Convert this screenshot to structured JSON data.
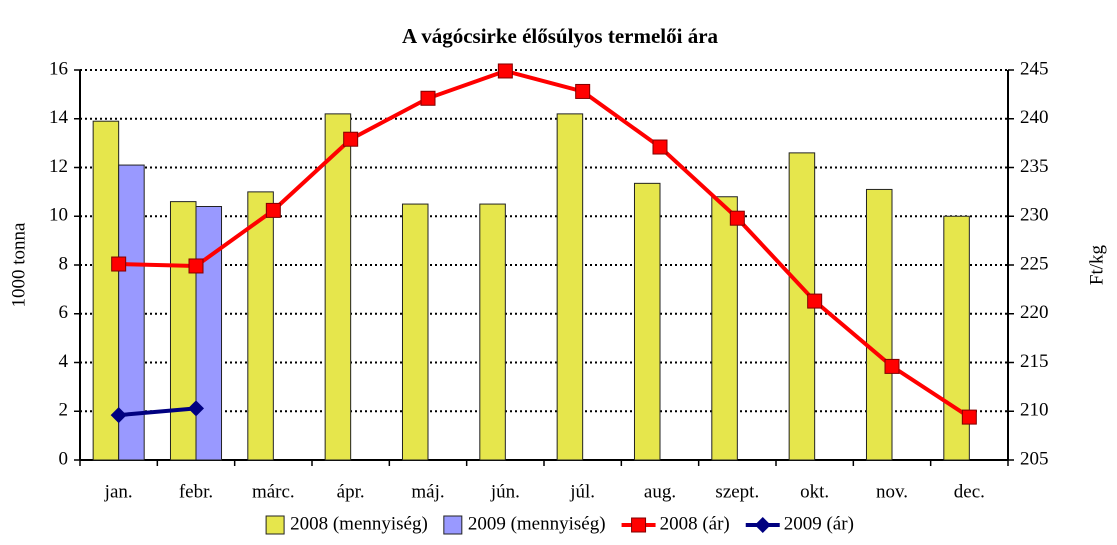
{
  "chart_data": {
    "type": "bar",
    "title": "A vágócsirke élősúlyos termelői ára",
    "ylabel": "1000 tonna",
    "y2label": "Ft/kg",
    "categories": [
      "jan.",
      "febr.",
      "márc.",
      "ápr.",
      "máj.",
      "jún.",
      "júl.",
      "aug.",
      "szept.",
      "okt.",
      "nov.",
      "dec."
    ],
    "series": [
      {
        "name": "2008 (mennyiség)",
        "type": "bar",
        "color": "#e6e64c",
        "values": [
          13.9,
          10.6,
          11.0,
          14.2,
          10.5,
          10.5,
          14.2,
          11.35,
          10.8,
          12.6,
          11.1,
          10.0
        ]
      },
      {
        "name": "2009 (mennyiség)",
        "type": "bar",
        "color": "#9999ff",
        "values": [
          12.1,
          10.4,
          null,
          null,
          null,
          null,
          null,
          null,
          null,
          null,
          null,
          null
        ]
      },
      {
        "name": "2008 (ár)",
        "type": "line",
        "axis": "y2",
        "color": "#ff0000",
        "marker": "square",
        "values": [
          225.1,
          224.9,
          230.6,
          237.9,
          242.1,
          244.9,
          242.8,
          237.1,
          229.8,
          221.3,
          214.6,
          209.4
        ]
      },
      {
        "name": "2009 (ár)",
        "type": "line",
        "axis": "y2",
        "color": "#000080",
        "marker": "diamond",
        "values": [
          209.6,
          210.3,
          null,
          null,
          null,
          null,
          null,
          null,
          null,
          null,
          null,
          null
        ]
      }
    ],
    "ylim": [
      0,
      16
    ],
    "yticks": [
      0,
      2,
      4,
      6,
      8,
      10,
      12,
      14,
      16
    ],
    "y2lim": [
      205,
      245
    ],
    "y2ticks": [
      205,
      210,
      215,
      220,
      225,
      230,
      235,
      240,
      245
    ],
    "grid": true,
    "legend": "bottom"
  }
}
